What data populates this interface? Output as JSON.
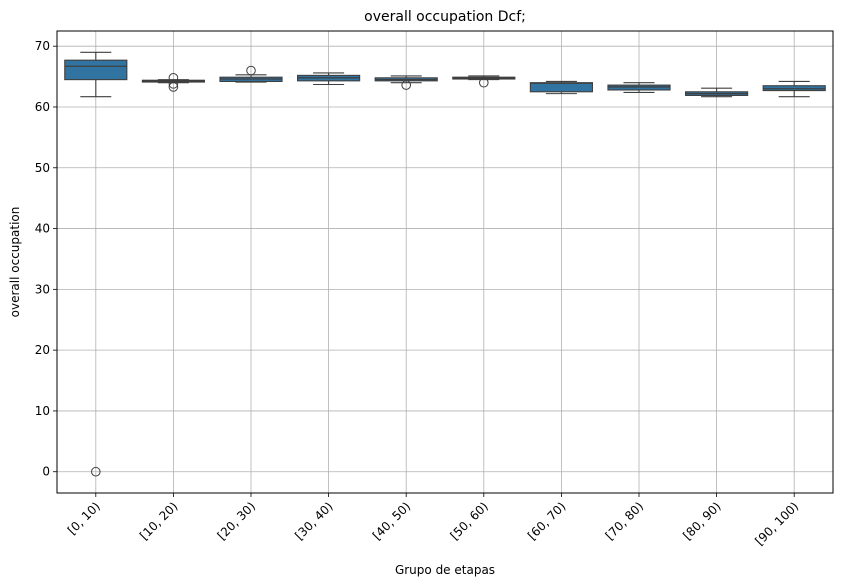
{
  "chart_data": {
    "type": "box",
    "title": "overall occupation Dcf;",
    "xlabel": "Grupo de etapas",
    "ylabel": "overall occupation",
    "ylim": [
      -3.5,
      72.5
    ],
    "yticks": [
      0,
      10,
      20,
      30,
      40,
      50,
      60,
      70
    ],
    "grid": true,
    "box_color": "#3274a1",
    "categories": [
      "[0, 10)",
      "[10, 20)",
      "[20, 30)",
      "[30, 40)",
      "[40, 50)",
      "[50, 60)",
      "[60, 70)",
      "[70, 80)",
      "[80, 90)",
      "[90, 100)"
    ],
    "boxes": [
      {
        "whisker_low": 61.7,
        "q1": 64.5,
        "median": 66.7,
        "q3": 67.7,
        "whisker_high": 69.0,
        "outliers": [
          0.0
        ]
      },
      {
        "whisker_low": 64.0,
        "q1": 64.1,
        "median": 64.3,
        "q3": 64.4,
        "whisker_high": 64.5,
        "outliers": [
          63.3,
          63.8,
          64.8
        ]
      },
      {
        "whisker_low": 64.1,
        "q1": 64.2,
        "median": 64.6,
        "q3": 64.9,
        "whisker_high": 65.3,
        "outliers": [
          66.0
        ]
      },
      {
        "whisker_low": 63.7,
        "q1": 64.3,
        "median": 64.8,
        "q3": 65.2,
        "whisker_high": 65.6,
        "outliers": []
      },
      {
        "whisker_low": 64.0,
        "q1": 64.3,
        "median": 64.5,
        "q3": 64.8,
        "whisker_high": 65.1,
        "outliers": [
          63.6
        ]
      },
      {
        "whisker_low": 64.5,
        "q1": 64.6,
        "median": 64.8,
        "q3": 64.9,
        "whisker_high": 65.1,
        "outliers": [
          64.0
        ]
      },
      {
        "whisker_low": 62.2,
        "q1": 62.5,
        "median": 63.9,
        "q3": 64.0,
        "whisker_high": 64.2,
        "outliers": []
      },
      {
        "whisker_low": 62.4,
        "q1": 62.8,
        "median": 63.3,
        "q3": 63.6,
        "whisker_high": 64.0,
        "outliers": []
      },
      {
        "whisker_low": 61.7,
        "q1": 61.9,
        "median": 62.2,
        "q3": 62.5,
        "whisker_high": 63.1,
        "outliers": []
      },
      {
        "whisker_low": 61.7,
        "q1": 62.7,
        "median": 63.0,
        "q3": 63.5,
        "whisker_high": 64.2,
        "outliers": []
      }
    ]
  }
}
